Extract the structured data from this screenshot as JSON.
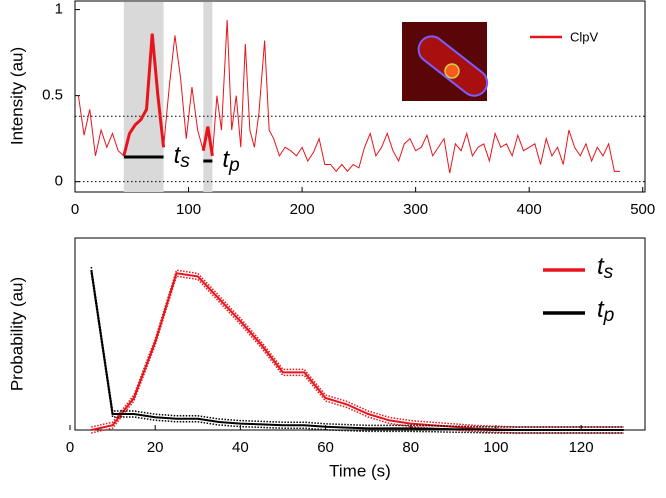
{
  "chart_data": [
    {
      "type": "line",
      "ylabel": "Intensity (au)",
      "x": [
        3,
        8,
        13,
        18,
        23,
        28,
        33,
        38,
        43,
        48,
        53,
        58,
        63,
        68,
        73,
        78,
        83,
        88,
        93,
        98,
        103,
        108,
        113,
        117,
        121,
        125,
        129,
        134,
        138,
        142,
        146,
        150,
        154,
        158,
        162,
        167,
        171,
        175,
        180,
        185,
        190,
        195,
        200,
        205,
        210,
        215,
        220,
        225,
        230,
        235,
        240,
        245,
        250,
        255,
        260,
        265,
        270,
        275,
        280,
        285,
        290,
        295,
        300,
        305,
        310,
        315,
        320,
        325,
        330,
        335,
        340,
        345,
        350,
        355,
        360,
        365,
        370,
        375,
        380,
        385,
        390,
        395,
        400,
        405,
        410,
        415,
        420,
        425,
        430,
        435,
        440,
        445,
        450,
        455,
        460,
        465,
        470,
        475,
        480
      ],
      "series": [
        {
          "name": "ClpV",
          "color": "#e8141c",
          "values": [
            0.5,
            0.27,
            0.42,
            0.15,
            0.3,
            0.2,
            0.28,
            0.18,
            0.15,
            0.28,
            0.33,
            0.36,
            0.42,
            0.86,
            0.5,
            0.2,
            0.55,
            0.85,
            0.6,
            0.25,
            0.55,
            0.3,
            0.18,
            0.32,
            0.15,
            0.5,
            0.3,
            0.94,
            0.3,
            0.5,
            0.2,
            0.8,
            0.3,
            0.2,
            0.4,
            0.82,
            0.3,
            0.25,
            0.15,
            0.2,
            0.18,
            0.15,
            0.2,
            0.12,
            0.17,
            0.25,
            0.1,
            0.1,
            0.06,
            0.1,
            0.06,
            0.1,
            0.08,
            0.2,
            0.28,
            0.15,
            0.2,
            0.28,
            0.18,
            0.12,
            0.22,
            0.25,
            0.18,
            0.2,
            0.27,
            0.15,
            0.2,
            0.25,
            0.05,
            0.22,
            0.18,
            0.28,
            0.15,
            0.2,
            0.22,
            0.12,
            0.28,
            0.2,
            0.22,
            0.15,
            0.27,
            0.18,
            0.2,
            0.22,
            0.1,
            0.25,
            0.15,
            0.2,
            0.1,
            0.3,
            0.2,
            0.15,
            0.22,
            0.12,
            0.2,
            0.15,
            0.22,
            0.06,
            0.06
          ]
        }
      ],
      "shaded_regions": [
        [
          43,
          78
        ],
        [
          113,
          121
        ]
      ],
      "annotations": [
        "ts",
        "tp"
      ],
      "hlines": [
        0.38,
        0
      ],
      "xlim": [
        0,
        502
      ],
      "ylim": [
        -0.06,
        1.05
      ],
      "xticks": [
        0,
        100,
        200,
        300,
        400,
        500
      ],
      "yticks": [
        0,
        0.5,
        1
      ]
    },
    {
      "type": "line",
      "xlabel": "Time (s)",
      "ylabel": "Probability (au)",
      "x": [
        5,
        10,
        15,
        20,
        25,
        30,
        35,
        40,
        45,
        50,
        55,
        60,
        65,
        70,
        75,
        80,
        85,
        90,
        95,
        100,
        105,
        110,
        115,
        120,
        125,
        130
      ],
      "series": [
        {
          "name": "ts",
          "color": "#e8141c",
          "values": [
            0,
            0.03,
            0.2,
            0.55,
            0.98,
            0.96,
            0.82,
            0.68,
            0.53,
            0.36,
            0.36,
            0.2,
            0.16,
            0.1,
            0.06,
            0.04,
            0.03,
            0.02,
            0.01,
            0.005,
            0,
            0,
            0,
            0,
            0,
            0
          ]
        },
        {
          "name": "tp",
          "color": "#000000",
          "values": [
            1.0,
            0.1,
            0.1,
            0.08,
            0.07,
            0.07,
            0.05,
            0.04,
            0.035,
            0.03,
            0.03,
            0.02,
            0.015,
            0.01,
            0.01,
            0.01,
            0.008,
            0.005,
            0.003,
            0,
            0,
            0,
            0,
            0,
            0,
            0
          ]
        }
      ],
      "xlim": [
        0,
        135
      ],
      "ylim": [
        0,
        1.2
      ],
      "xticks": [
        0,
        20,
        40,
        60,
        80,
        100,
        120
      ]
    }
  ]
}
